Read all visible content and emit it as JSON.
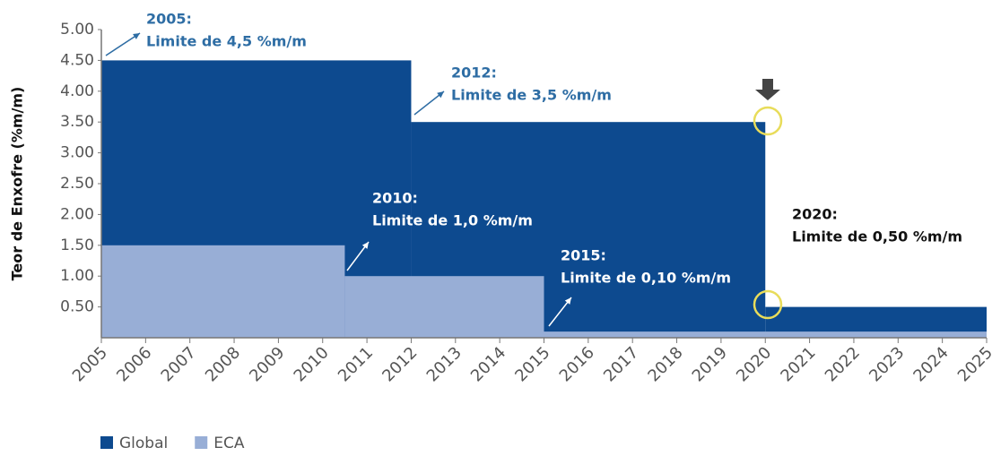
{
  "chart_data": {
    "type": "step-area",
    "y_label": "Teor de Enxofre (%m/m)",
    "xlim": [
      2005,
      2025
    ],
    "xticks": [
      2005,
      2006,
      2007,
      2008,
      2009,
      2010,
      2011,
      2012,
      2013,
      2014,
      2015,
      2016,
      2017,
      2018,
      2019,
      2020,
      2021,
      2022,
      2023,
      2024,
      2025
    ],
    "ylim": [
      0,
      5
    ],
    "yticks": [
      {
        "value": 0.5,
        "label": "0.50"
      },
      {
        "value": 1,
        "label": "1.00"
      },
      {
        "value": 1.5,
        "label": "1.50"
      },
      {
        "value": 2,
        "label": "2.00"
      },
      {
        "value": 2.5,
        "label": "2.50"
      },
      {
        "value": 3,
        "label": "3.00"
      },
      {
        "value": 3.5,
        "label": "3.50"
      },
      {
        "value": 4,
        "label": "4.00"
      },
      {
        "value": 4.5,
        "label": "4.50"
      },
      {
        "value": 5,
        "label": "5.00"
      }
    ],
    "grid": false,
    "legend": "bottom-left",
    "series": [
      {
        "name": "Global",
        "color": "#0d4a8f",
        "bins": [
          2005,
          2012,
          2020,
          2025
        ],
        "values": [
          4.5,
          3.5,
          0.5
        ]
      },
      {
        "name": "ECA",
        "color": "#98aed6",
        "bins": [
          2005,
          2010.5,
          2015,
          2025
        ],
        "values": [
          1.5,
          1.0,
          0.1
        ]
      }
    ],
    "annotations": [
      {
        "lines": [
          "2005:",
          "Limite de 4,5 %m/m"
        ],
        "color": "#2e6da4"
      },
      {
        "lines": [
          "2012:",
          "Limite de 3,5 %m/m"
        ],
        "color": "#2e6da4"
      },
      {
        "lines": [
          "2010:",
          "Limite de 1,0 %m/m"
        ],
        "color": "#ffffff"
      },
      {
        "lines": [
          "2015:",
          "Limite de 0,10 %m/m"
        ],
        "color": "#ffffff"
      },
      {
        "lines": [
          "2020:",
          "Limite de 0,50 %m/m"
        ],
        "color": "#111111"
      }
    ]
  }
}
